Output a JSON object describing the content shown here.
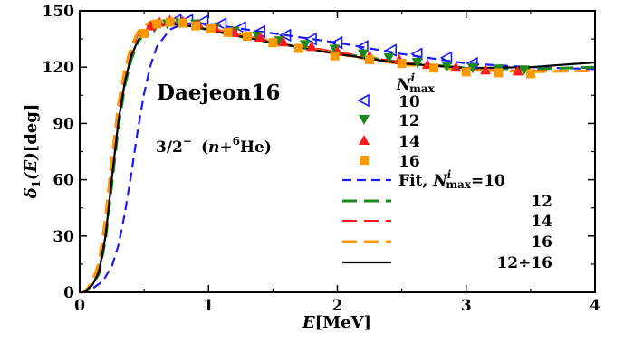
{
  "chart_data": {
    "type": "line",
    "xlabel_main": "E",
    "xlabel_unit": "[MeV]",
    "ylabel_main": "δ",
    "ylabel_sub": "1",
    "ylabel_rest": "(E)",
    "ylabel_unit": "[deg]",
    "xlim": [
      0,
      4
    ],
    "ylim": [
      0,
      150
    ],
    "xticks": [
      0,
      1,
      2,
      3,
      4
    ],
    "yticks": [
      0,
      30,
      60,
      90,
      120,
      150
    ],
    "xtick_labels": [
      "0",
      "1",
      "2",
      "3",
      "4"
    ],
    "ytick_labels": [
      "0",
      "30",
      "60",
      "90",
      "120",
      "150"
    ],
    "grid": false,
    "legend_placement": "right",
    "annotations": {
      "potential": "Daejeon16",
      "state_prefix": "3/2",
      "state_sup": "−",
      "state_paren_open": "(",
      "state_n": "n",
      "state_plus": "+",
      "state_mass": "6",
      "state_he": "He",
      "state_paren_close": ")"
    },
    "legend_header": {
      "sym": "N",
      "sup": "i",
      "sub": "max"
    },
    "marker_series": [
      {
        "name": "10",
        "marker": "triangle-left-open",
        "color": "#1a1aff",
        "x": [
          0.75,
          0.84,
          0.96,
          1.1,
          1.25,
          1.4,
          1.6,
          1.8,
          2.0,
          2.2,
          2.42,
          2.62,
          2.85,
          3.05
        ],
        "y": [
          145,
          145,
          144.5,
          143,
          141,
          139,
          137,
          135,
          133,
          131,
          129,
          127,
          125,
          122
        ]
      },
      {
        "name": "12",
        "marker": "triangle-down",
        "color": "#1a8a1a",
        "x": [
          0.58,
          0.68,
          0.78,
          0.9,
          1.05,
          1.2,
          1.38,
          1.55,
          1.75,
          1.98,
          2.2,
          2.4,
          2.62,
          2.85,
          3.05,
          3.25,
          3.45
        ],
        "y": [
          141,
          143,
          143.5,
          143,
          141,
          139,
          136.5,
          134,
          132,
          129.5,
          127,
          125,
          122.5,
          120.5,
          119.5,
          119,
          118.5
        ]
      },
      {
        "name": "14",
        "marker": "triangle-up",
        "color": "#ff1a1a",
        "x": [
          0.55,
          0.62,
          0.7,
          0.8,
          0.92,
          1.05,
          1.2,
          1.4,
          1.58,
          1.8,
          2.0,
          2.25,
          2.48,
          2.7,
          2.92,
          3.15,
          3.4
        ],
        "y": [
          142,
          144,
          145,
          144.5,
          143,
          141,
          138.5,
          136,
          133.5,
          131,
          128.5,
          126,
          124,
          121.5,
          120,
          118.5,
          118
        ]
      },
      {
        "name": "16",
        "marker": "square",
        "color": "#ff9900",
        "x": [
          0.5,
          0.6,
          0.7,
          0.8,
          0.9,
          1.02,
          1.15,
          1.3,
          1.5,
          1.7,
          1.98,
          2.25,
          2.5,
          2.75,
          3.0,
          3.25,
          3.5
        ],
        "y": [
          138,
          143,
          144,
          143.5,
          142,
          140.5,
          138.5,
          136.5,
          133,
          130,
          126,
          124,
          122,
          119.5,
          117.5,
          117,
          116.5
        ]
      }
    ],
    "line_series": [
      {
        "name": "Fit, N",
        "name_sup": "i",
        "name_sub": "max",
        "name_eq": "=10",
        "color": "#1a1aff",
        "dash": "10,6",
        "width": 2.2,
        "x": [
          0,
          0.1,
          0.18,
          0.25,
          0.3,
          0.35,
          0.4,
          0.45,
          0.5,
          0.55,
          0.6,
          0.7,
          0.8,
          0.9,
          1.0,
          1.2,
          1.5,
          2.0,
          2.5,
          3.0,
          3.5,
          4.0
        ],
        "y": [
          0,
          2,
          6,
          14,
          25,
          42,
          63,
          86,
          106,
          121,
          131,
          140,
          143,
          143.5,
          143,
          141,
          138,
          133,
          127,
          122,
          120,
          119
        ]
      },
      {
        "name": "12",
        "color": "#1a8a1a",
        "dash": "16,8",
        "width": 3,
        "x": [
          0,
          0.05,
          0.1,
          0.15,
          0.2,
          0.25,
          0.3,
          0.35,
          0.4,
          0.45,
          0.5,
          0.55,
          0.6,
          0.7,
          0.8,
          1.0,
          1.2,
          1.5,
          2.0,
          2.5,
          3.0,
          3.5,
          4.0
        ],
        "y": [
          0,
          1,
          4,
          10,
          28,
          58,
          88,
          110,
          124,
          133,
          138,
          141,
          142.5,
          143,
          142.5,
          140,
          137,
          133,
          127.5,
          122.5,
          119.5,
          119,
          120
        ]
      },
      {
        "name": "14",
        "color": "#ff1a1a",
        "dash": "16,8",
        "width": 2,
        "x": [
          0,
          0.05,
          0.1,
          0.15,
          0.2,
          0.25,
          0.3,
          0.35,
          0.4,
          0.45,
          0.5,
          0.55,
          0.6,
          0.7,
          0.8,
          1.0,
          1.2,
          1.5,
          2.0,
          2.5,
          3.0,
          3.5,
          4.0
        ],
        "y": [
          0,
          1,
          5,
          13,
          34,
          66,
          95,
          116,
          129,
          137,
          141,
          143.5,
          144.5,
          144.5,
          143.5,
          141,
          138,
          134,
          128,
          122.5,
          119,
          118,
          118
        ]
      },
      {
        "name": "16",
        "color": "#ff9900",
        "dash": "16,8",
        "width": 3,
        "x": [
          0,
          0.05,
          0.1,
          0.15,
          0.2,
          0.25,
          0.3,
          0.35,
          0.4,
          0.45,
          0.5,
          0.55,
          0.6,
          0.7,
          0.8,
          1.0,
          1.2,
          1.5,
          2.0,
          2.5,
          3.0,
          3.5,
          4.0
        ],
        "y": [
          0,
          1,
          6,
          16,
          40,
          72,
          100,
          119,
          131,
          138.5,
          142,
          144,
          145,
          144.5,
          143.5,
          140.5,
          137.5,
          133.5,
          127,
          121.5,
          118.5,
          117.5,
          118
        ]
      },
      {
        "name": "12÷16",
        "color": "#000000",
        "dash": "",
        "width": 2.2,
        "x": [
          0,
          0.05,
          0.1,
          0.15,
          0.2,
          0.25,
          0.3,
          0.35,
          0.4,
          0.45,
          0.5,
          0.55,
          0.6,
          0.7,
          0.8,
          1.0,
          1.2,
          1.5,
          2.0,
          2.5,
          3.0,
          3.5,
          4.0
        ],
        "y": [
          0,
          1,
          4,
          11,
          30,
          61,
          91,
          112,
          126,
          134,
          139,
          141.5,
          142.5,
          143,
          142.5,
          140,
          137,
          133,
          127,
          122,
          119.5,
          120,
          122.5
        ]
      }
    ]
  }
}
